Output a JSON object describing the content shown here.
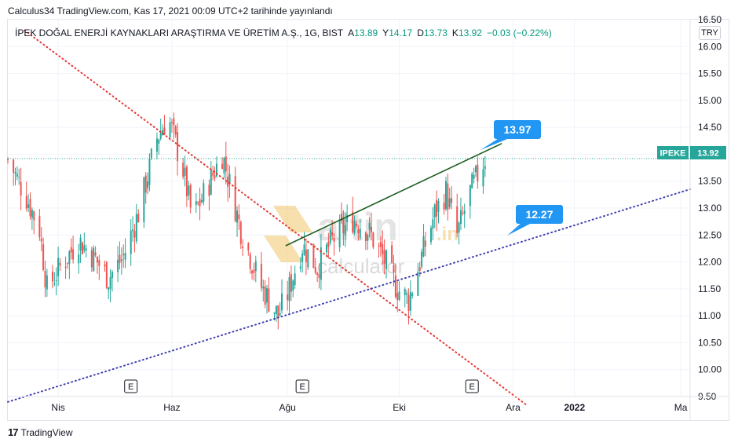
{
  "header": {
    "publication": "Calculus34 TradingView.com, Kas 17, 2021 00:09 UTC+2 tarihinde yayınlandı"
  },
  "legend": {
    "symbol": "İPEK DOĞAL ENERJİ KAYNAKLARI ARAŞTIRMA VE ÜRETİM A.Ş., 1G, BIST",
    "open_label": "A",
    "open": "13.89",
    "high_label": "Y",
    "high": "14.17",
    "low_label": "D",
    "low": "13.73",
    "close_label": "K",
    "close": "13.92",
    "change": "−0.03 (−0.22%)"
  },
  "currency": "TRY",
  "price_label": {
    "ticker": "IPEKE",
    "value": "13.92"
  },
  "callouts": [
    {
      "text": "13.97",
      "price": 13.97
    },
    {
      "text": "12.27",
      "price": 12.27
    }
  ],
  "watermark": {
    "brand": "altin",
    "suffix": ".in",
    "sub": "calculator"
  },
  "footer": {
    "brand": "TradingView",
    "logo_mark": "17"
  },
  "event_markers": [
    "E",
    "E",
    "E"
  ],
  "colors": {
    "up": "#26a69a",
    "down": "#ef5350",
    "price_line": "#26a69a",
    "callout_bg": "#2196f3",
    "descending_line": "#e53935",
    "support_line": "#3f3fb0",
    "resistance_line": "#1b5e20"
  },
  "chart_data": {
    "type": "candlestick",
    "y_axis": {
      "min": 9.5,
      "max": 16.5,
      "ticks": [
        9.5,
        10.0,
        10.5,
        11.0,
        11.5,
        12.0,
        12.5,
        13.0,
        13.5,
        14.0,
        14.5,
        15.0,
        15.5,
        16.0,
        16.5
      ]
    },
    "y_tick_labels": [
      "9.50",
      "10.00",
      "10.50",
      "11.00",
      "11.50",
      "12.00",
      "12.50",
      "13.00",
      "13.50",
      "14.00",
      "14.50",
      "15.00",
      "15.50",
      "16.00",
      "16.50"
    ],
    "x_axis": {
      "start": "2021-03-05",
      "end": "2022-03-06",
      "labels": [
        {
          "text": "Nis",
          "date": "2021-04-01",
          "bold": false
        },
        {
          "text": "Haz",
          "date": "2021-06-01",
          "bold": false
        },
        {
          "text": "Ağu",
          "date": "2021-08-02",
          "bold": false
        },
        {
          "text": "Eki",
          "date": "2021-10-01",
          "bold": false
        },
        {
          "text": "Ara",
          "date": "2021-12-01",
          "bold": false
        },
        {
          "text": "2022",
          "date": "2022-01-03",
          "bold": true
        },
        {
          "text": "Ma",
          "date": "2022-03-01",
          "bold": false
        }
      ]
    },
    "event_dates": [
      "2021-05-10",
      "2021-08-10",
      "2021-11-09"
    ],
    "price_line": 13.92,
    "trend_lines": [
      {
        "name": "descending",
        "style": "dotted",
        "points": [
          [
            "2021-03-14",
            16.3
          ],
          [
            "2021-12-08",
            9.35
          ]
        ]
      },
      {
        "name": "support",
        "style": "dotted",
        "points": [
          [
            "2021-03-05",
            9.4
          ],
          [
            "2022-03-06",
            13.35
          ]
        ]
      },
      {
        "name": "resistance",
        "style": "solid",
        "points": [
          [
            "2021-08-01",
            12.3
          ],
          [
            "2021-11-25",
            14.2
          ]
        ]
      }
    ],
    "candle_range": {
      "start": "2021-03-05",
      "end": "2021-11-16"
    },
    "series": [
      {
        "name": "close",
        "anchors": [
          [
            "2021-03-05",
            13.9
          ],
          [
            "2021-03-15",
            13.2
          ],
          [
            "2021-03-22",
            12.6
          ],
          [
            "2021-03-26",
            11.5
          ],
          [
            "2021-04-02",
            11.9
          ],
          [
            "2021-04-12",
            12.4
          ],
          [
            "2021-04-20",
            12.1
          ],
          [
            "2021-04-28",
            11.7
          ],
          [
            "2021-05-06",
            12.1
          ],
          [
            "2021-05-14",
            12.9
          ],
          [
            "2021-05-24",
            14.3
          ],
          [
            "2021-05-30",
            14.7
          ],
          [
            "2021-06-07",
            13.7
          ],
          [
            "2021-06-12",
            12.8
          ],
          [
            "2021-06-20",
            13.4
          ],
          [
            "2021-06-28",
            14.0
          ],
          [
            "2021-07-08",
            12.6
          ],
          [
            "2021-07-18",
            11.6
          ],
          [
            "2021-07-28",
            11.0
          ],
          [
            "2021-08-02",
            11.4
          ],
          [
            "2021-08-10",
            12.3
          ],
          [
            "2021-08-18",
            11.9
          ],
          [
            "2021-08-26",
            12.4
          ],
          [
            "2021-09-06",
            12.8
          ],
          [
            "2021-09-14",
            12.6
          ],
          [
            "2021-09-22",
            12.1
          ],
          [
            "2021-09-30",
            11.5
          ],
          [
            "2021-10-06",
            11.3
          ],
          [
            "2021-10-13",
            12.1
          ],
          [
            "2021-10-20",
            12.9
          ],
          [
            "2021-10-26",
            13.3
          ],
          [
            "2021-11-01",
            12.5
          ],
          [
            "2021-11-08",
            13.3
          ],
          [
            "2021-11-16",
            13.92
          ]
        ]
      }
    ]
  }
}
